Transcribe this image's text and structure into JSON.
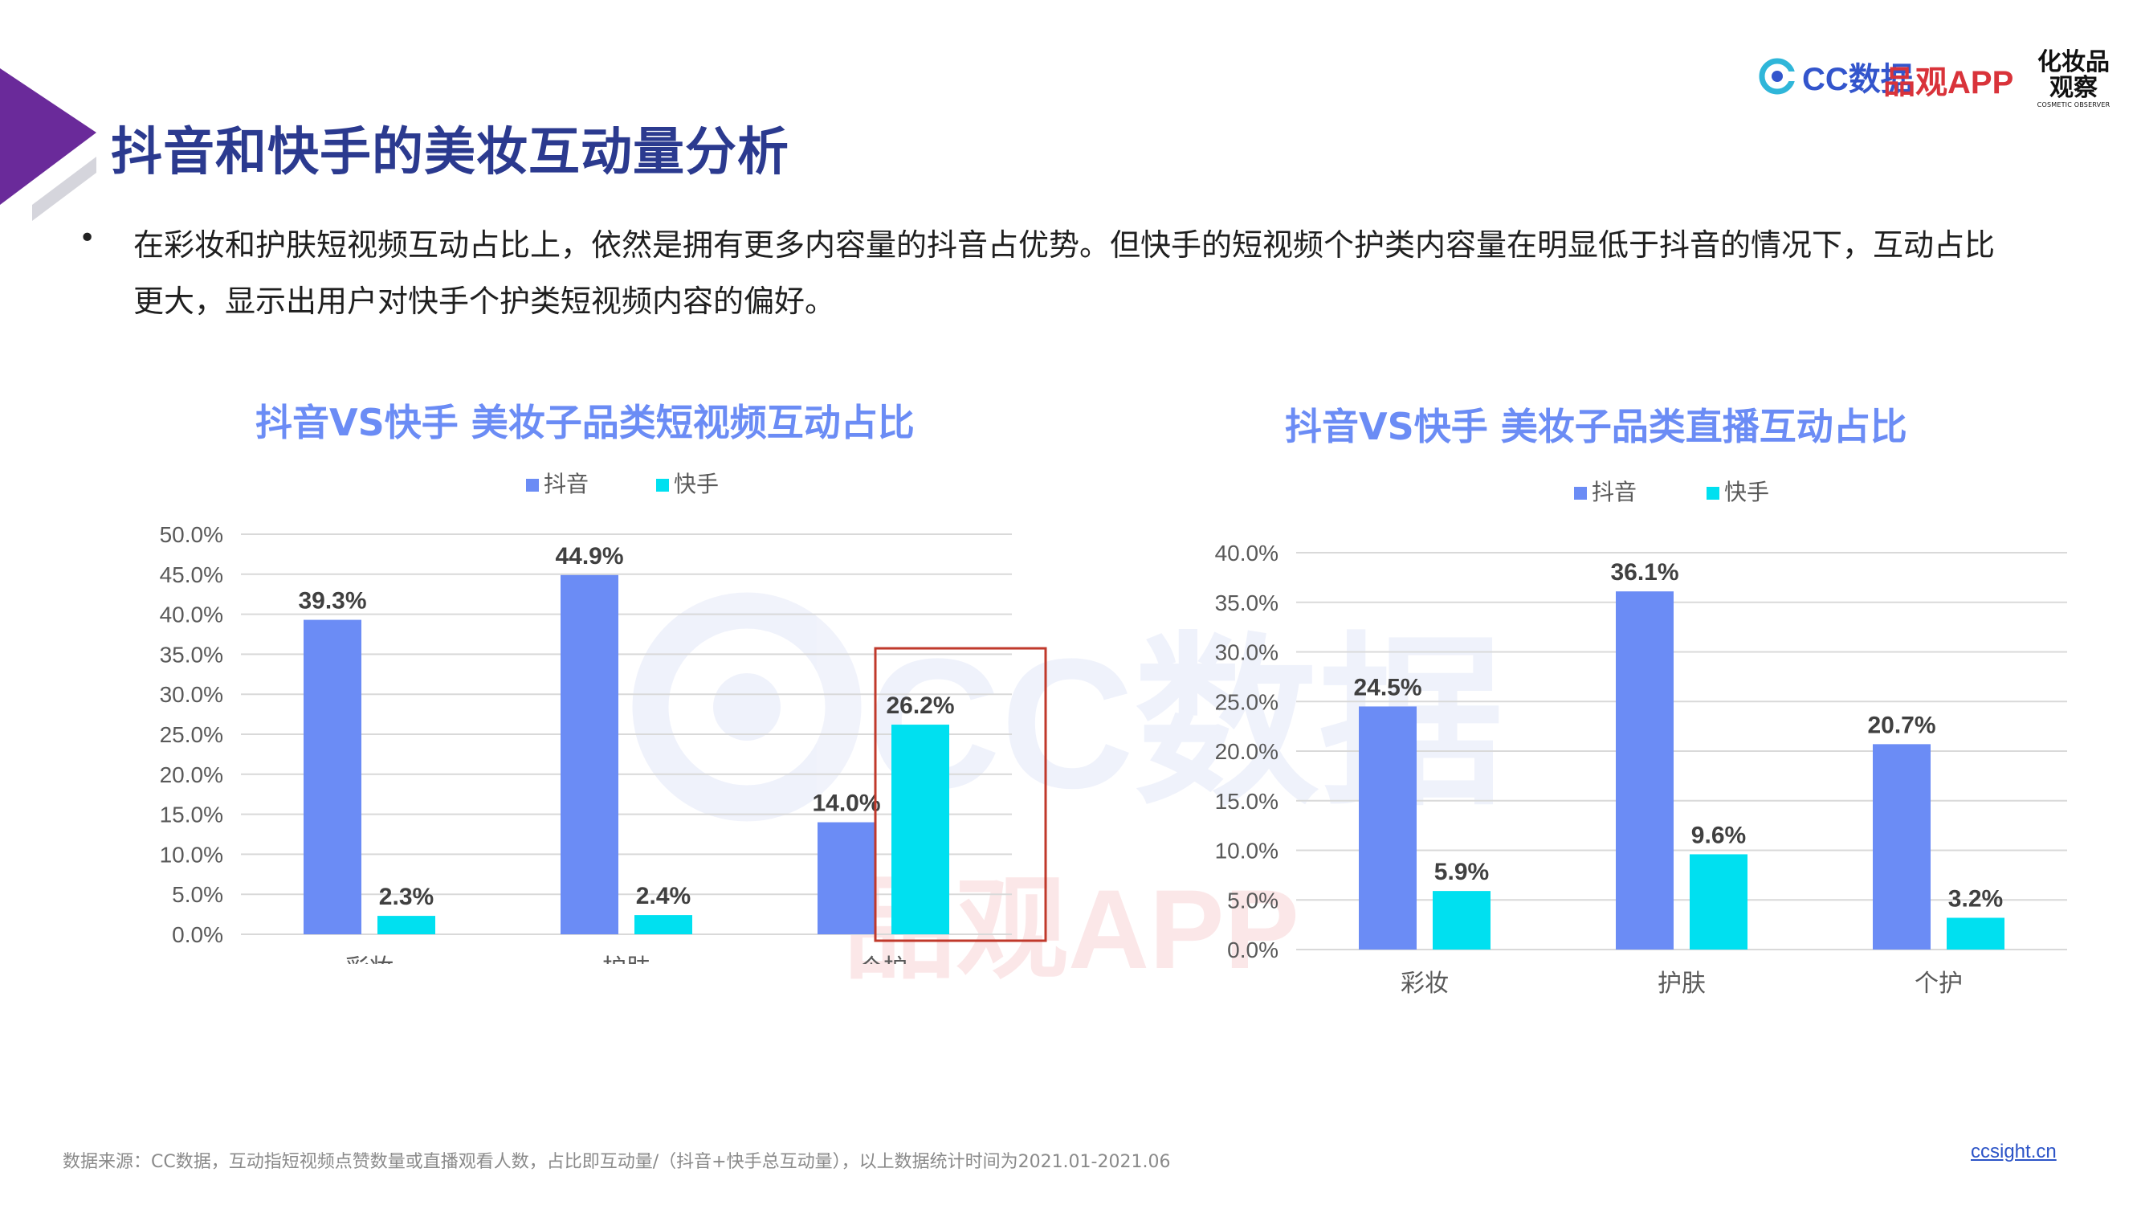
{
  "page": {
    "title": "抖音和快手的美妆互动量分析",
    "bullet": "在彩妆和护肤短视频互动占比上，依然是拥有更多内容量的抖音占优势。但快手的短视频个护类内容量在明显低于抖音的情况下，互动占比更大，显示出用户对快手个护类短视频内容的偏好。",
    "footnote": "数据来源：CC数据，互动指短视频点赞数量或直播观看人数，占比即互动量/（抖音+快手总互动量），以上数据统计时间为2021.01-2021.06",
    "site": "ccsight.cn"
  },
  "brands": {
    "cc": "CC数据",
    "pinguan": "品观APP",
    "cosmetic_line1": "化妆品",
    "cosmetic_line2": "观察",
    "cosmetic_en": "COSMETIC OBSERVER"
  },
  "watermarks": [
    "CC数据",
    "品观APP"
  ],
  "colors": {
    "title": "#2b3a8f",
    "chart_title": "#6b8cf5",
    "douyin": "#6b8cf5",
    "kuaishou": "#00e0f0",
    "highlight_box": "#c0392b",
    "accent_purple": "#6a2a9a"
  },
  "chart_data": [
    {
      "type": "bar",
      "title": "抖音VS快手 美妆子品类短视频互动占比",
      "categories": [
        "彩妆",
        "护肤",
        "个护"
      ],
      "series": [
        {
          "name": "抖音",
          "values": [
            39.3,
            44.9,
            14.0
          ],
          "labels": [
            "39.3%",
            "44.9%",
            "14.0%"
          ]
        },
        {
          "name": "快手",
          "values": [
            2.3,
            2.4,
            26.2
          ],
          "labels": [
            "2.3%",
            "2.4%",
            "26.2%"
          ]
        }
      ],
      "ylim": [
        0,
        50
      ],
      "yticks": [
        "0.0%",
        "5.0%",
        "10.0%",
        "15.0%",
        "20.0%",
        "25.0%",
        "30.0%",
        "35.0%",
        "40.0%",
        "45.0%",
        "50.0%"
      ],
      "grid": true,
      "legend": "top",
      "highlight": {
        "category": "个护"
      }
    },
    {
      "type": "bar",
      "title": "抖音VS快手 美妆子品类直播互动占比",
      "categories": [
        "彩妆",
        "护肤",
        "个护"
      ],
      "series": [
        {
          "name": "抖音",
          "values": [
            24.5,
            36.1,
            20.7
          ],
          "labels": [
            "24.5%",
            "36.1%",
            "20.7%"
          ]
        },
        {
          "name": "快手",
          "values": [
            5.9,
            9.6,
            3.2
          ],
          "labels": [
            "5.9%",
            "9.6%",
            "3.2%"
          ]
        }
      ],
      "ylim": [
        0,
        40
      ],
      "yticks": [
        "0.0%",
        "5.0%",
        "10.0%",
        "15.0%",
        "20.0%",
        "25.0%",
        "30.0%",
        "35.0%",
        "40.0%"
      ],
      "grid": true,
      "legend": "top"
    }
  ]
}
